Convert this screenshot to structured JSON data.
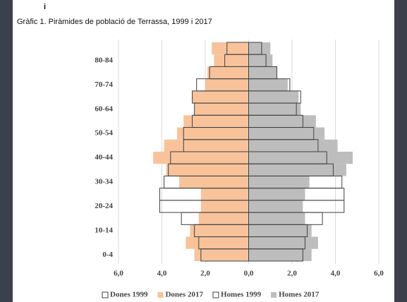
{
  "chart_data": {
    "type": "pyramid",
    "annotation": "i",
    "title": "Gràfic 1. Piràmides de població de Terrassa, 1999 i 2017",
    "categories": [
      "0-4",
      null,
      "10-14",
      null,
      "20-24",
      null,
      "30-34",
      null,
      "40-44",
      null,
      "50-54",
      null,
      "60-64",
      null,
      "70-74",
      null,
      "80-84",
      null
    ],
    "series": [
      {
        "name": "Dones 1999",
        "color": "#404040",
        "style": "outline",
        "values": [
          -2.2,
          -2.3,
          -2.5,
          -3.1,
          -4.1,
          -4.1,
          -3.9,
          -3.7,
          -3.6,
          -3.0,
          -3.0,
          -2.6,
          -2.5,
          -2.6,
          -2.4,
          -1.8,
          -1.1,
          -1.0
        ]
      },
      {
        "name": "Dones 2017",
        "color": "#f8c39a",
        "style": "fill",
        "values": [
          -2.5,
          -2.9,
          -2.7,
          -2.3,
          -2.2,
          -2.2,
          -3.2,
          -3.8,
          -4.4,
          -3.9,
          -3.3,
          -3.0,
          -2.5,
          -2.6,
          -2.0,
          -1.9,
          -1.6,
          -1.7
        ]
      },
      {
        "name": "Homes 1999",
        "color": "#404040",
        "style": "outline",
        "values": [
          2.5,
          2.6,
          2.7,
          3.4,
          4.4,
          4.4,
          4.3,
          3.9,
          3.6,
          3.2,
          3.0,
          2.5,
          2.2,
          2.4,
          1.9,
          1.3,
          0.8,
          0.6
        ]
      },
      {
        "name": "Homes 2017",
        "color": "#bdbdbd",
        "style": "fill",
        "values": [
          2.9,
          3.2,
          2.9,
          2.6,
          2.5,
          2.6,
          2.8,
          4.5,
          4.8,
          4.1,
          3.5,
          3.1,
          2.4,
          2.3,
          1.8,
          1.3,
          1.1,
          1.0
        ]
      }
    ],
    "xlim": [
      -6,
      6
    ],
    "xticks": [
      {
        "value": -6,
        "label": "6,0"
      },
      {
        "value": -4,
        "label": "4,0"
      },
      {
        "value": -2,
        "label": "2,0"
      },
      {
        "value": 0,
        "label": "0,0"
      },
      {
        "value": 2,
        "label": "2,0"
      },
      {
        "value": 4,
        "label": "4,0"
      },
      {
        "value": 6,
        "label": "6,0"
      }
    ],
    "grid": true,
    "legend": "bottom"
  }
}
